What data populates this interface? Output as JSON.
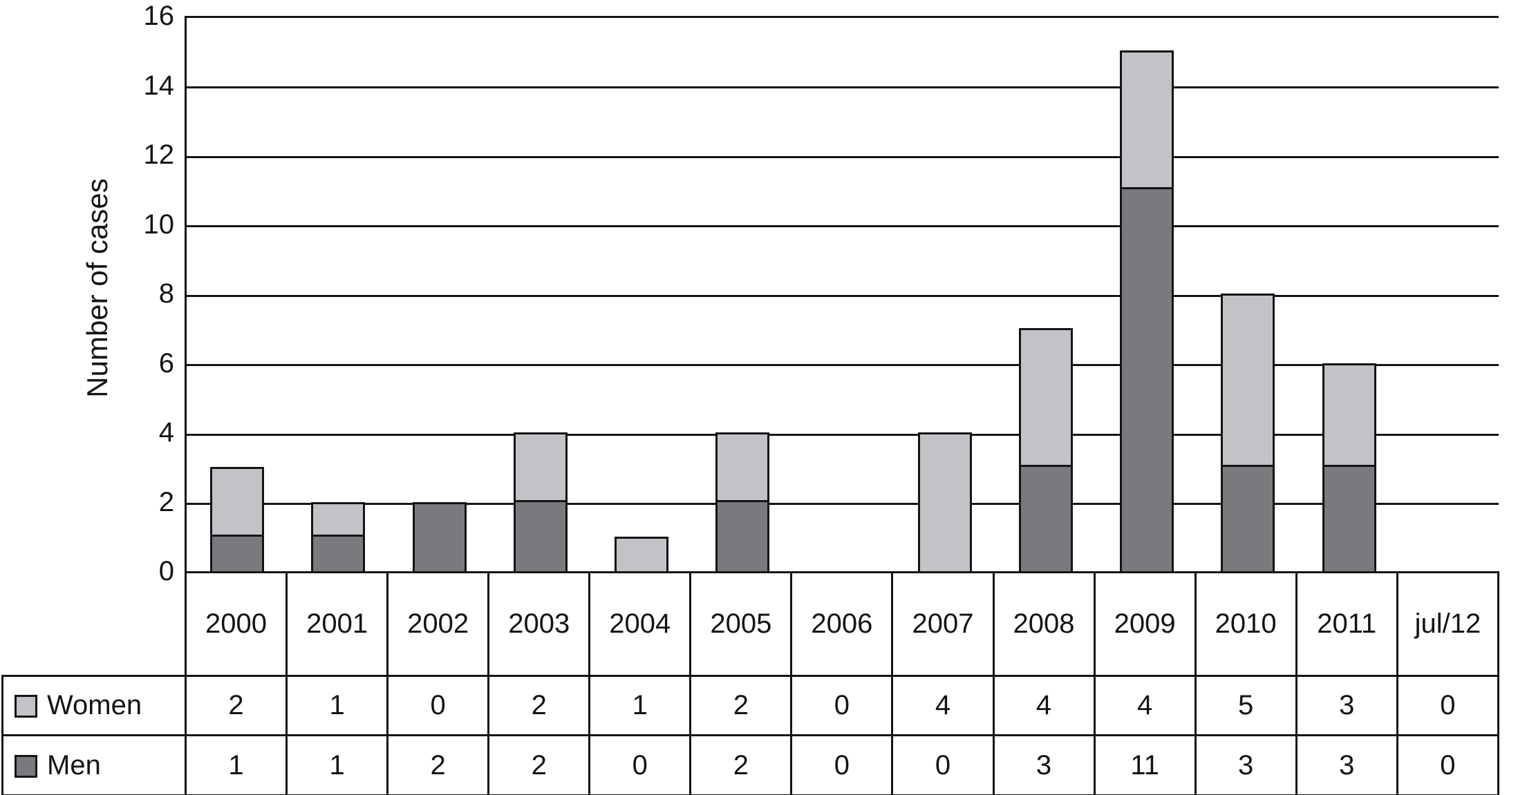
{
  "chart_data": {
    "type": "bar",
    "stacked": true,
    "title": "",
    "xlabel": "",
    "ylabel": "Number of cases",
    "ylim": [
      0,
      16
    ],
    "yticks": [
      0,
      2,
      4,
      6,
      8,
      10,
      12,
      14,
      16
    ],
    "grid": true,
    "legend_position": "table-left-bottom",
    "categories": [
      "2000",
      "2001",
      "2002",
      "2003",
      "2004",
      "2005",
      "2006",
      "2007",
      "2008",
      "2009",
      "2010",
      "2011",
      "jul/12"
    ],
    "series": [
      {
        "name": "Women",
        "color": "#c2c3c7",
        "stack_order": "top",
        "values": [
          2,
          1,
          0,
          2,
          1,
          2,
          0,
          4,
          4,
          4,
          5,
          3,
          0
        ]
      },
      {
        "name": "Men",
        "color": "#797a7e",
        "stack_order": "bottom",
        "values": [
          1,
          1,
          2,
          2,
          0,
          2,
          0,
          0,
          3,
          11,
          3,
          3,
          0
        ]
      }
    ],
    "line_color": "#141414",
    "background_color": "#ffffff"
  }
}
